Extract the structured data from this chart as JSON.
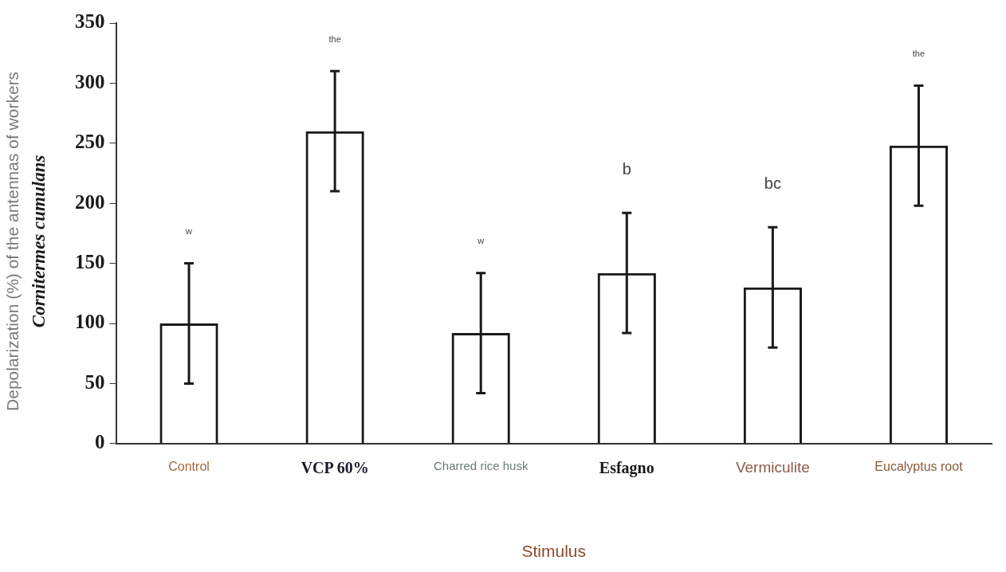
{
  "chart_data": {
    "type": "bar",
    "categories": [
      "Control",
      "VCP 60%",
      "Charred rice husk",
      "Esfagno",
      "Vermiculite",
      "Eucalyptus root"
    ],
    "values": [
      100,
      260,
      92,
      142,
      130,
      248
    ],
    "errors": [
      50,
      50,
      50,
      50,
      50,
      50
    ],
    "color": "#1a1a1a",
    "xlabel": "Stimulus",
    "ylabel": "Depolarization (%) of the antennas of workers\nCornitermes cumulans",
    "ylim": [
      0,
      350
    ],
    "yticks": [
      0,
      50,
      100,
      150,
      200,
      250,
      300,
      350
    ],
    "grid": false,
    "legend": false,
    "annotations": [
      "w",
      "the",
      "w",
      "b",
      "bc",
      "the"
    ]
  }
}
